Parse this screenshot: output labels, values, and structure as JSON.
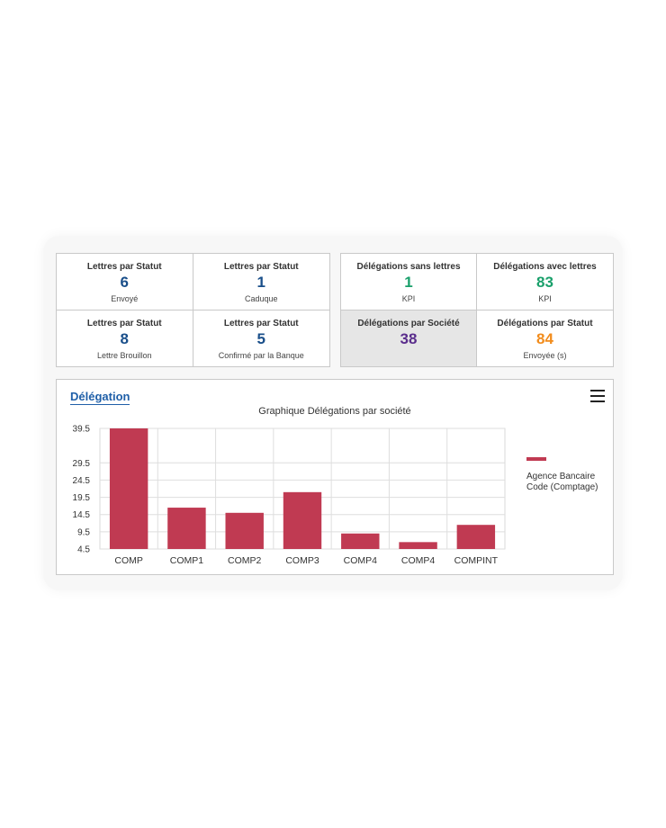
{
  "kpi_left": [
    {
      "title": "Lettres par Statut",
      "value": "6",
      "sub": "Envoyé",
      "color": "#1a4f8a"
    },
    {
      "title": "Lettres par Statut",
      "value": "1",
      "sub": "Caduque",
      "color": "#1a4f8a"
    },
    {
      "title": "Lettres par Statut",
      "value": "8",
      "sub": "Lettre Brouillon",
      "color": "#1a4f8a"
    },
    {
      "title": "Lettres par Statut",
      "value": "5",
      "sub": "Confirmé par la Banque",
      "color": "#1a4f8a"
    }
  ],
  "kpi_right": [
    {
      "title": "Délégations sans lettres",
      "value": "1",
      "sub": "KPI",
      "color": "#1aa06b"
    },
    {
      "title": "Délégations avec lettres",
      "value": "83",
      "sub": "KPI",
      "color": "#1aa06b"
    },
    {
      "title": "Délégations par Société",
      "value": "38",
      "sub": "",
      "color": "#5a2d8c"
    },
    {
      "title": "Délégations par Statut",
      "value": "84",
      "sub": "Envoyée (s)",
      "color": "#f28c1c"
    }
  ],
  "panel": {
    "title": "Délégation"
  },
  "chart_data": {
    "type": "bar",
    "title": "Graphique Délégations par société",
    "categories": [
      "COMP",
      "COMP1",
      "COMP2",
      "COMP3",
      "COMP4",
      "COMP4",
      "COMPINT"
    ],
    "series": [
      {
        "name": "Agence Bancaire Code (Comptage)",
        "values": [
          39.5,
          16.5,
          15.0,
          21.0,
          9.0,
          6.5,
          11.5
        ]
      }
    ],
    "yticks": [
      "39.5",
      "29.5",
      "24.5",
      "19.5",
      "14.5",
      "9.5",
      "4.5"
    ],
    "ylim": [
      4.5,
      39.5
    ],
    "grid": true,
    "legend_position": "right",
    "bar_color": "#c03a52"
  },
  "legend": {
    "line1": "Agence Bancaire",
    "line2": "Code (Comptage)"
  }
}
